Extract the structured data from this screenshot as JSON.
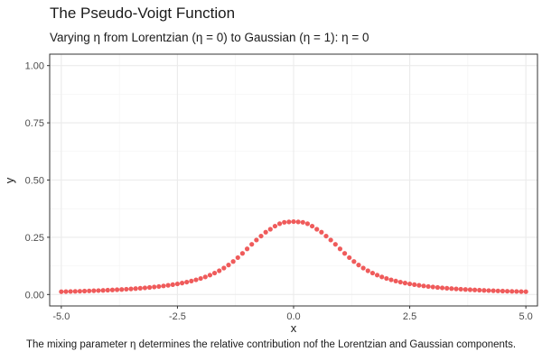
{
  "chart_data": {
    "type": "scatter",
    "title": "The Pseudo-Voigt Function",
    "subtitle": "Varying η from Lorentzian (η = 0) to Gaussian (η = 1): η = 0",
    "caption": "The mixing parameter η determines the relative contribution nof the Lorentzian and Gaussian components.",
    "xlabel": "x",
    "ylabel": "y",
    "xlim": [
      -5.25,
      5.25
    ],
    "ylim": [
      -0.05,
      1.05
    ],
    "x_ticks": [
      -5.0,
      -2.5,
      0.0,
      2.5,
      5.0
    ],
    "x_tick_labels": [
      "-5.0",
      "-2.5",
      "0.0",
      "2.5",
      "5.0"
    ],
    "y_ticks": [
      0.0,
      0.25,
      0.5,
      0.75,
      1.0
    ],
    "y_tick_labels": [
      "0.00",
      "0.25",
      "0.50",
      "0.75",
      "1.00"
    ],
    "grid": true,
    "point_color": "#EF5B5B",
    "series": [
      {
        "x": [
          -5.0,
          -4.9,
          -4.8,
          -4.7,
          -4.6,
          -4.5,
          -4.4,
          -4.3,
          -4.2,
          -4.1,
          -4.0,
          -3.9,
          -3.8,
          -3.7,
          -3.6,
          -3.5,
          -3.4,
          -3.3,
          -3.2,
          -3.1,
          -3.0,
          -2.9,
          -2.8,
          -2.7,
          -2.6,
          -2.5,
          -2.4,
          -2.3,
          -2.2,
          -2.1,
          -2.0,
          -1.9,
          -1.8,
          -1.7,
          -1.6,
          -1.5,
          -1.4,
          -1.3,
          -1.2,
          -1.1,
          -1.0,
          -0.9,
          -0.8,
          -0.7,
          -0.6,
          -0.5,
          -0.4,
          -0.3,
          -0.2,
          -0.1,
          0.0,
          0.1,
          0.2,
          0.3,
          0.4,
          0.5,
          0.6,
          0.7,
          0.8,
          0.9,
          1.0,
          1.1,
          1.2,
          1.3,
          1.4,
          1.5,
          1.6,
          1.7,
          1.8,
          1.9,
          2.0,
          2.1,
          2.2,
          2.3,
          2.4,
          2.5,
          2.6,
          2.7,
          2.8,
          2.9,
          3.0,
          3.1,
          3.2,
          3.3,
          3.4,
          3.5,
          3.6,
          3.7,
          3.8,
          3.9,
          4.0,
          4.1,
          4.2,
          4.3,
          4.4,
          4.5,
          4.6,
          4.7,
          4.8,
          4.9,
          5.0
        ],
        "y": [
          0.0122,
          0.0127,
          0.0133,
          0.0138,
          0.0144,
          0.0151,
          0.0158,
          0.0165,
          0.0172,
          0.0181,
          0.0189,
          0.0199,
          0.0209,
          0.022,
          0.0232,
          0.0245,
          0.0258,
          0.0274,
          0.029,
          0.0308,
          0.0329,
          0.035,
          0.0375,
          0.0401,
          0.0431,
          0.0464,
          0.0501,
          0.0541,
          0.0588,
          0.0641,
          0.0701,
          0.0768,
          0.0847,
          0.0937,
          0.1038,
          0.1155,
          0.129,
          0.1442,
          0.1612,
          0.1797,
          0.1994,
          0.2192,
          0.238,
          0.2552,
          0.2724,
          0.2851,
          0.2986,
          0.3092,
          0.3154,
          0.3172,
          0.3183,
          0.3172,
          0.3154,
          0.3092,
          0.2986,
          0.2851,
          0.2724,
          0.2552,
          0.238,
          0.2192,
          0.1994,
          0.1797,
          0.1612,
          0.1442,
          0.129,
          0.1155,
          0.1038,
          0.0937,
          0.0847,
          0.0768,
          0.0701,
          0.0641,
          0.0588,
          0.0541,
          0.0501,
          0.0464,
          0.0431,
          0.0401,
          0.0375,
          0.035,
          0.0329,
          0.0308,
          0.029,
          0.0274,
          0.0258,
          0.0245,
          0.0232,
          0.022,
          0.0209,
          0.0199,
          0.0189,
          0.0181,
          0.0172,
          0.0165,
          0.0158,
          0.0151,
          0.0144,
          0.0138,
          0.0133,
          0.0127,
          0.0122
        ]
      }
    ]
  }
}
